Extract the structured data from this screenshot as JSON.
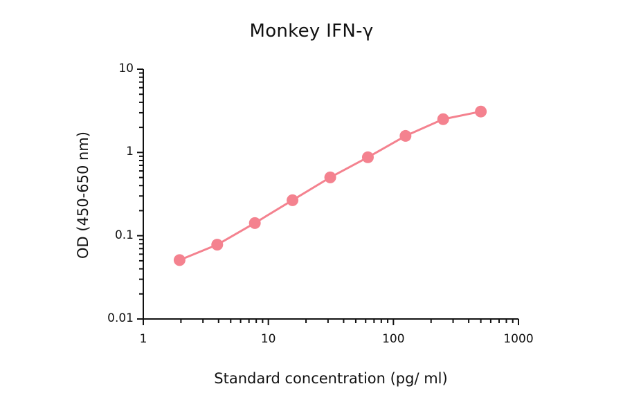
{
  "chart_data": {
    "type": "line",
    "title": "Monkey IFN-γ",
    "xlabel": "Standard concentration (pg/ ml)",
    "ylabel": "OD (450-650 nm)",
    "xscale": "log",
    "yscale": "log",
    "xlim": [
      1,
      1000
    ],
    "ylim": [
      0.01,
      10
    ],
    "xticks": [
      "1",
      "10",
      "100",
      "1000"
    ],
    "yticks": [
      "0.01",
      "0.1",
      "1",
      "10"
    ],
    "grid": false,
    "legend": null,
    "series": [
      {
        "name": "Monkey IFN-γ",
        "color": "#f4828f",
        "marker": "circle",
        "x": [
          1.95,
          3.9,
          7.8,
          15.6,
          31.25,
          62.5,
          125,
          250,
          500
        ],
        "y": [
          0.051,
          0.078,
          0.142,
          0.267,
          0.502,
          0.875,
          1.58,
          2.51,
          3.1
        ]
      }
    ]
  },
  "style": {
    "axis_color": "#111111",
    "series_color": "#f4828f"
  }
}
